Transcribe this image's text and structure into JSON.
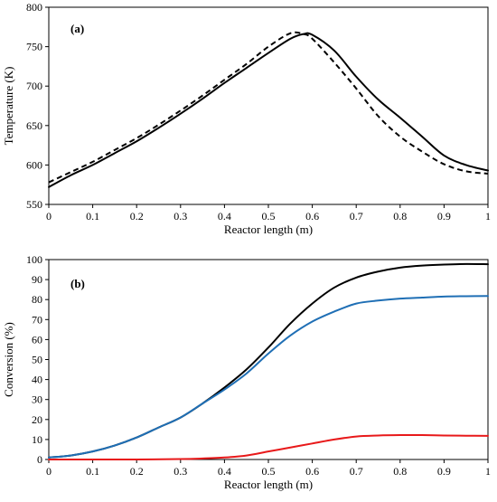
{
  "chart_data": [
    {
      "type": "line",
      "panel_label": "(a)",
      "xlabel": "Reactor length (m)",
      "ylabel": "Temperature (K)",
      "xlim": [
        0,
        1
      ],
      "ylim": [
        550,
        800
      ],
      "xticks": [
        "0",
        "0.1",
        "0.2",
        "0.3",
        "0.4",
        "0.5",
        "0.6",
        "0.7",
        "0.8",
        "0.9",
        "1"
      ],
      "yticks": [
        "550",
        "600",
        "650",
        "700",
        "750",
        "800"
      ],
      "grid": false,
      "legend": "none",
      "series": [
        {
          "style": "solid",
          "color": "#000000",
          "x": [
            0,
            0.05,
            0.1,
            0.15,
            0.2,
            0.25,
            0.3,
            0.35,
            0.4,
            0.45,
            0.5,
            0.55,
            0.58,
            0.6,
            0.65,
            0.7,
            0.75,
            0.8,
            0.85,
            0.9,
            0.95,
            1.0
          ],
          "y": [
            572,
            587,
            600,
            615,
            630,
            647,
            665,
            684,
            704,
            723,
            742,
            760,
            766,
            765,
            745,
            712,
            683,
            660,
            636,
            612,
            600,
            593
          ]
        },
        {
          "style": "dashed",
          "color": "#000000",
          "x": [
            0,
            0.05,
            0.1,
            0.15,
            0.2,
            0.25,
            0.3,
            0.35,
            0.4,
            0.45,
            0.5,
            0.55,
            0.58,
            0.6,
            0.65,
            0.7,
            0.75,
            0.8,
            0.85,
            0.9,
            0.95,
            1.0
          ],
          "y": [
            578,
            591,
            604,
            619,
            634,
            651,
            669,
            688,
            708,
            728,
            750,
            767,
            766,
            760,
            730,
            697,
            662,
            636,
            617,
            601,
            592,
            589
          ]
        }
      ]
    },
    {
      "type": "line",
      "panel_label": "(b)",
      "xlabel": "Reactor length (m)",
      "ylabel": "Conversion (%)",
      "xlim": [
        0,
        1
      ],
      "ylim": [
        0,
        100
      ],
      "xticks": [
        "0",
        "0.1",
        "0.2",
        "0.3",
        "0.4",
        "0.5",
        "0.6",
        "0.7",
        "0.8",
        "0.9",
        "1"
      ],
      "yticks": [
        "0",
        "10",
        "20",
        "30",
        "40",
        "50",
        "60",
        "70",
        "80",
        "90",
        "100"
      ],
      "grid": false,
      "legend": "none",
      "series": [
        {
          "style": "solid",
          "color": "#000000",
          "x": [
            0,
            0.05,
            0.1,
            0.15,
            0.2,
            0.25,
            0.3,
            0.35,
            0.4,
            0.45,
            0.5,
            0.55,
            0.6,
            0.65,
            0.7,
            0.75,
            0.8,
            0.85,
            0.9,
            0.95,
            1.0
          ],
          "y": [
            1,
            2,
            4,
            7,
            11,
            16,
            21,
            28,
            36,
            45,
            56,
            68,
            78,
            86,
            91,
            94,
            96,
            97,
            97.5,
            97.8,
            97.7
          ]
        },
        {
          "style": "solid",
          "color": "#1f6fb5",
          "x": [
            0,
            0.05,
            0.1,
            0.15,
            0.2,
            0.25,
            0.3,
            0.35,
            0.4,
            0.45,
            0.5,
            0.55,
            0.6,
            0.65,
            0.7,
            0.75,
            0.8,
            0.85,
            0.9,
            0.95,
            1.0
          ],
          "y": [
            1,
            2,
            4,
            7,
            11,
            16,
            21,
            28,
            35,
            43,
            53,
            62,
            69,
            74,
            78,
            79.5,
            80.5,
            81,
            81.5,
            81.7,
            81.8
          ]
        },
        {
          "style": "solid",
          "color": "#e8191a",
          "x": [
            0,
            0.1,
            0.2,
            0.3,
            0.35,
            0.4,
            0.45,
            0.5,
            0.55,
            0.6,
            0.65,
            0.7,
            0.75,
            0.8,
            0.85,
            0.9,
            0.95,
            1.0
          ],
          "y": [
            0,
            0,
            0,
            0.2,
            0.5,
            1,
            2,
            4,
            6,
            8,
            10,
            11.5,
            12,
            12.2,
            12.2,
            12,
            11.9,
            11.8
          ]
        }
      ]
    }
  ]
}
